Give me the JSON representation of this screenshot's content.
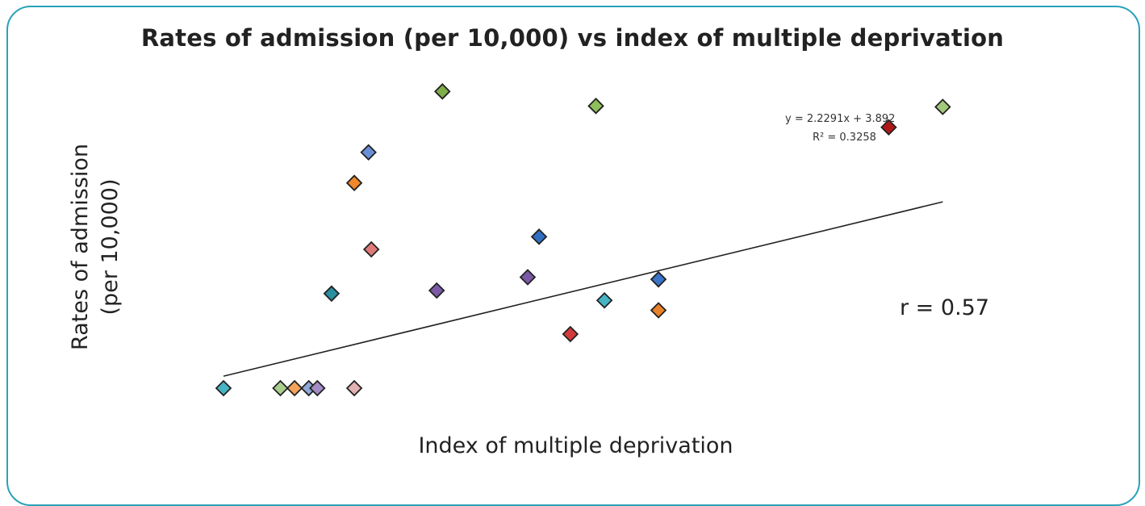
{
  "chart_data": {
    "type": "scatter",
    "title": "Rates of admission (per 10,000) vs index of multiple deprivation",
    "xlabel": "Index of multiple deprivation",
    "ylabel": [
      "Rates of admission",
      "(per 10,000)"
    ],
    "xlim": [
      0,
      26
    ],
    "ylim": [
      0,
      100
    ],
    "grid": false,
    "legend": "none",
    "points": [
      {
        "x": 0.0,
        "y": 0,
        "color": "#45b5c4"
      },
      {
        "x": 2.0,
        "y": 0,
        "color": "#a9cf8e"
      },
      {
        "x": 2.5,
        "y": 0,
        "color": "#f5a35a"
      },
      {
        "x": 3.0,
        "y": 0,
        "color": "#8fa9d6"
      },
      {
        "x": 3.3,
        "y": 0,
        "color": "#a48cc4"
      },
      {
        "x": 4.6,
        "y": 0,
        "color": "#e2b1b1"
      },
      {
        "x": 3.8,
        "y": 30.6,
        "color": "#2a8fa0"
      },
      {
        "x": 4.6,
        "y": 66.4,
        "color": "#f0882a"
      },
      {
        "x": 5.1,
        "y": 76.3,
        "color": "#6a8fd6"
      },
      {
        "x": 5.2,
        "y": 44.9,
        "color": "#e07a7a"
      },
      {
        "x": 7.5,
        "y": 31.6,
        "color": "#7a5aa6"
      },
      {
        "x": 7.7,
        "y": 96.0,
        "color": "#7fae4a"
      },
      {
        "x": 10.7,
        "y": 35.9,
        "color": "#7a5aa6"
      },
      {
        "x": 11.1,
        "y": 49.0,
        "color": "#2f6fc4"
      },
      {
        "x": 12.2,
        "y": 17.5,
        "color": "#d23b3b"
      },
      {
        "x": 13.1,
        "y": 91.3,
        "color": "#8fbf5a"
      },
      {
        "x": 13.4,
        "y": 28.4,
        "color": "#45b5c4"
      },
      {
        "x": 15.3,
        "y": 35.2,
        "color": "#3a74c9"
      },
      {
        "x": 15.3,
        "y": 25.2,
        "color": "#e8822a"
      },
      {
        "x": 23.4,
        "y": 84.4,
        "color": "#b01818"
      },
      {
        "x": 25.3,
        "y": 91.0,
        "color": "#a3c97a"
      }
    ],
    "trendline": {
      "equation": "y = 2.2291x + 3.892",
      "r_squared_label": "R² = 0.3258",
      "slope": 2.2291,
      "intercept": 3.892
    },
    "annotation": "r = 0.57"
  },
  "theme": {
    "frame_color": "#2aa2b8",
    "marker_stroke": "#222222",
    "trend_color": "#222222"
  }
}
